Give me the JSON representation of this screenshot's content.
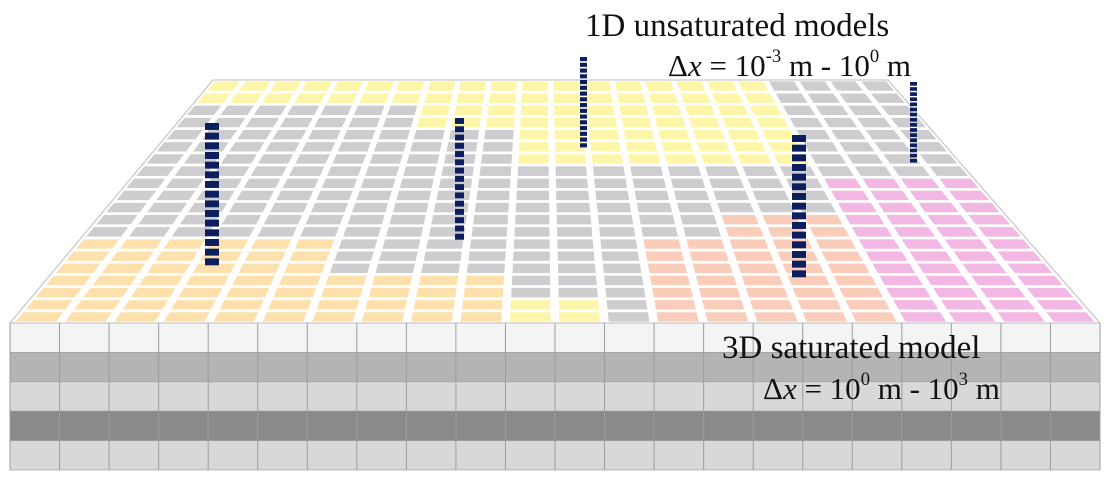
{
  "labels": {
    "unsat_title": "1D unsaturated models",
    "unsat_dx_symbol": "Δ",
    "unsat_dx_var": "x",
    "unsat_dx_eq": " = 10",
    "unsat_dx_exp1": "-3",
    "unsat_dx_mid": " m - 10",
    "unsat_dx_exp2": "0",
    "unsat_dx_unit": " m",
    "sat_title": "3D saturated model",
    "sat_dx_symbol": "Δ",
    "sat_dx_var": "x",
    "sat_dx_eq": " = 10",
    "sat_dx_exp1": "0",
    "sat_dx_mid": " m - 10",
    "sat_dx_exp2": "3",
    "sat_dx_unit": " m"
  },
  "colors": {
    "yellow": "#fdf6a8",
    "gray": "#cdcdd0",
    "orange": "#fde0ab",
    "salmon": "#f9cdb9",
    "pink": "#f2b7e3",
    "column": "#0d1e5e",
    "layer_light": "#f4f4f4",
    "layer_mid": "#b4b4b4",
    "layer_pale": "#d8d8d8",
    "layer_dark": "#8a8a8a"
  },
  "surface_zones": [
    "yellow",
    "gray",
    "orange",
    "salmon",
    "pink"
  ],
  "subsurface_layers": [
    "layer_light",
    "layer_mid",
    "layer_pale",
    "layer_dark",
    "layer_pale"
  ],
  "unsaturated_column_count": 5
}
